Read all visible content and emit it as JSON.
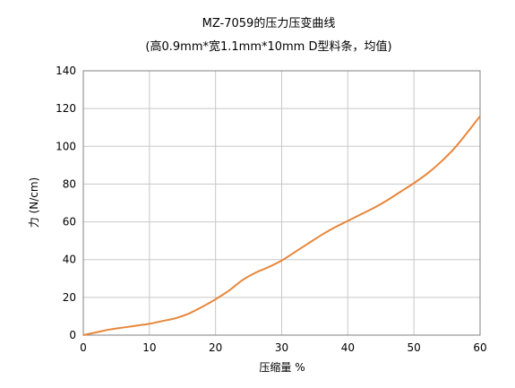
{
  "chart_data": {
    "type": "line",
    "title": "MZ-7059的压力压变曲线",
    "subtitle": "(高0.9mm*宽1.1mm*10mm D型料条，均值)",
    "xlabel": "压缩量 %",
    "ylabel": "力 (N/cm)",
    "xlim": [
      0,
      60
    ],
    "ylim": [
      0,
      140
    ],
    "x_ticks": [
      "0",
      "10",
      "20",
      "30",
      "40",
      "50",
      "60"
    ],
    "y_ticks": [
      "0",
      "20",
      "40",
      "60",
      "80",
      "100",
      "120",
      "140"
    ],
    "grid": true,
    "legend": "none",
    "series": [
      {
        "color": "#e8863a",
        "x": [
          0,
          2,
          4,
          6,
          8,
          10,
          12,
          14,
          16,
          18,
          20,
          22,
          24,
          26,
          28,
          30,
          32,
          34,
          36,
          38,
          40,
          42,
          44,
          46,
          48,
          50,
          52,
          54,
          56,
          58,
          60
        ],
        "y": [
          0,
          1.5,
          3,
          4,
          5,
          6,
          7.5,
          9,
          11.5,
          15,
          19,
          23.5,
          29,
          33,
          36,
          39.5,
          44,
          48.5,
          53,
          57,
          60.5,
          64,
          67.5,
          71.5,
          76,
          80.5,
          85.5,
          91.5,
          98.5,
          107,
          116
        ]
      }
    ]
  }
}
